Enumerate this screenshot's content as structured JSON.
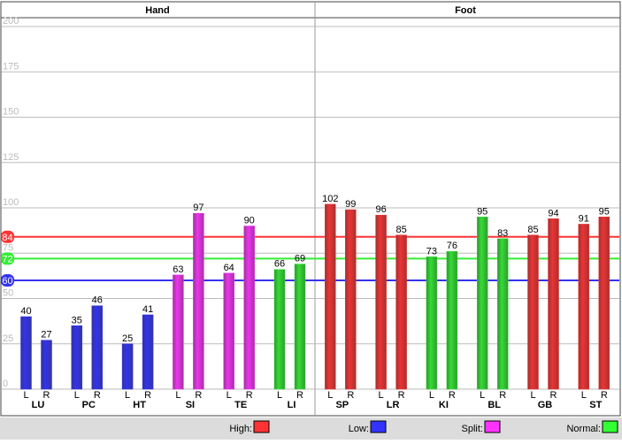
{
  "chart_data": {
    "type": "bar",
    "sections": [
      {
        "title": "Hand"
      },
      {
        "title": "Foot"
      }
    ],
    "categories": [
      "LU",
      "PC",
      "HT",
      "SI",
      "TE",
      "LI",
      "SP",
      "LR",
      "KI",
      "BL",
      "GB",
      "ST"
    ],
    "series": [
      {
        "name": "L",
        "values": [
          40,
          35,
          25,
          63,
          64,
          66,
          102,
          96,
          73,
          95,
          85,
          91
        ]
      },
      {
        "name": "R",
        "values": [
          27,
          46,
          41,
          97,
          90,
          69,
          99,
          85,
          76,
          83,
          94,
          95
        ]
      }
    ],
    "bar_colors": [
      "#3333ee",
      "#3333ee",
      "#3333ee",
      "#ee33ee",
      "#ee33ee",
      "#33dd33",
      "#ee3333",
      "#ee3333",
      "#33dd33",
      "#33dd33",
      "#ee3333",
      "#ee3333"
    ],
    "ylim": [
      0,
      200
    ],
    "yticks": [
      0,
      25,
      50,
      75,
      100,
      125,
      150,
      175,
      200
    ],
    "grid": true,
    "thresholds": [
      {
        "value": 84,
        "color": "#ff3333"
      },
      {
        "value": 72,
        "color": "#33ee33"
      },
      {
        "value": 60,
        "color": "#3333ee"
      }
    ],
    "legend": [
      {
        "label": "High:",
        "color": "#ff3333"
      },
      {
        "label": "Low:",
        "color": "#3333ff"
      },
      {
        "label": "Split:",
        "color": "#ff33ff"
      },
      {
        "label": "Normal:",
        "color": "#33ff33"
      }
    ]
  }
}
